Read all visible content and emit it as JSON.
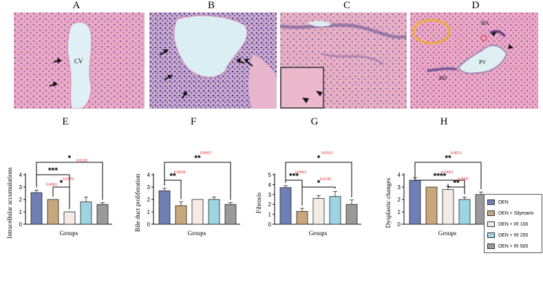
{
  "panel_letters": [
    "A",
    "B",
    "C",
    "D"
  ],
  "micro_labels": {
    "cv": "CV",
    "ha": "HA",
    "pv": "PV",
    "bd": "BD"
  },
  "colors": {
    "DEN": "#6e7fb6",
    "DEN + Silymarin": "#c7a77b",
    "DEN + IR 100": "#f3ece6",
    "DEN + IR 250": "#9ed4e2",
    "DEN + IR 500": "#9a9a9a",
    "pvalue": "#e02020",
    "tissue": "#e7a9c7",
    "nucleus": "#8a5d9e",
    "highlight_circle": "#f0b020"
  },
  "legend": [
    "DEN",
    "DEN + Silymarin",
    "DEN + IR 100",
    "DEN + IR 250",
    "DEN + IR 500"
  ],
  "chart_data": [
    {
      "type": "bar",
      "panel": "E",
      "ylabel": "Intracellular accumulations",
      "xlabel": "Groups",
      "ylim": [
        0,
        4
      ],
      "yticks": [
        0,
        1,
        2,
        3,
        4
      ],
      "categories": [
        "DEN",
        "DEN + Silymarin",
        "DEN + IR 100",
        "DEN + IR 250",
        "DEN + IR 500"
      ],
      "values": [
        2.55,
        2.0,
        1.0,
        1.8,
        1.6
      ],
      "errors": [
        0.2,
        0.0,
        0.0,
        0.4,
        0.15
      ],
      "comparisons": [
        {
          "from": 0,
          "to": 4,
          "stars": "*",
          "p": "0.0220"
        },
        {
          "from": 0,
          "to": 2,
          "stars": "***",
          "p": ""
        },
        {
          "from": 1,
          "to": 2,
          "stars": "*",
          "p": "0.0176"
        }
      ],
      "extra_pvalues": [
        "0.0001"
      ]
    },
    {
      "type": "bar",
      "panel": "F",
      "ylabel": "Bile duct proliferation",
      "xlabel": "Groups",
      "ylim": [
        0,
        4
      ],
      "yticks": [
        0,
        1,
        2,
        3,
        4
      ],
      "categories": [
        "DEN",
        "DEN + Silymarin",
        "DEN + IR 100",
        "DEN + IR 250",
        "DEN + IR 500"
      ],
      "values": [
        2.7,
        1.5,
        2.0,
        2.0,
        1.6
      ],
      "errors": [
        0.2,
        0.3,
        0.0,
        0.2,
        0.15
      ],
      "comparisons": [
        {
          "from": 0,
          "to": 4,
          "stars": "**",
          "p": "0.0065"
        },
        {
          "from": 0,
          "to": 1,
          "stars": "**",
          "p": "0.0028"
        }
      ],
      "extra_pvalues": []
    },
    {
      "type": "bar",
      "panel": "G",
      "ylabel": "Fibrosis",
      "xlabel": "Groups",
      "ylim": [
        0,
        5
      ],
      "yticks": [
        0,
        1,
        2,
        3,
        4,
        5
      ],
      "categories": [
        "DEN",
        "DEN + Silymarin",
        "DEN + IR 100",
        "DEN + IR 250",
        "DEN + IR 500"
      ],
      "values": [
        3.7,
        1.3,
        2.6,
        2.8,
        2.0
      ],
      "errors": [
        0.2,
        0.3,
        0.3,
        0.5,
        0.45
      ],
      "comparisons": [
        {
          "from": 0,
          "to": 4,
          "stars": "*",
          "p": "0.0102"
        },
        {
          "from": 0,
          "to": 1,
          "stars": "***",
          "p": "0.0003"
        },
        {
          "from": 1,
          "to": 3,
          "stars": "*",
          "p": "0.0343"
        }
      ],
      "extra_pvalues": []
    },
    {
      "type": "bar",
      "panel": "H",
      "ylabel": "Dysplastic changes",
      "xlabel": "Groups",
      "ylim": [
        0,
        4
      ],
      "yticks": [
        0,
        1,
        2,
        3,
        4
      ],
      "categories": [
        "DEN",
        "DEN + Silymarin",
        "DEN + IR 100",
        "DEN + IR 250",
        "DEN + IR 500"
      ],
      "values": [
        3.55,
        3.0,
        2.8,
        2.0,
        2.4
      ],
      "errors": [
        0.2,
        0.0,
        0.25,
        0.2,
        0.2
      ],
      "comparisons": [
        {
          "from": 0,
          "to": 4,
          "stars": "**",
          "p": "0.0021"
        },
        {
          "from": 0,
          "to": 3,
          "stars": "****",
          "p": "<0.0001"
        },
        {
          "from": 2,
          "to": 3,
          "stars": "**",
          "p": "0.0097"
        }
      ],
      "extra_pvalues": []
    }
  ]
}
